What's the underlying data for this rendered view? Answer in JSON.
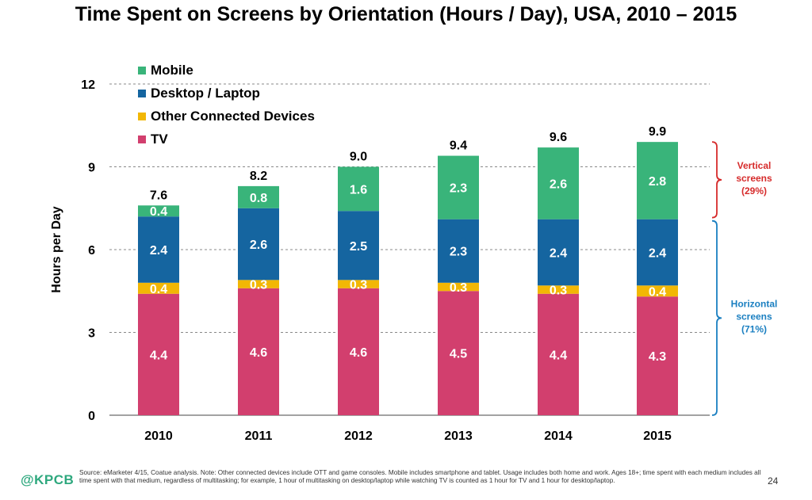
{
  "chart_data": {
    "type": "bar",
    "stacked": true,
    "title": "Time Spent on Screens by Orientation (Hours / Day), USA, 2010 – 2015",
    "ylabel": "Hours per Day",
    "xlabel": "",
    "ylim": [
      0,
      12
    ],
    "yticks": [
      0,
      3,
      6,
      9,
      12
    ],
    "grid": true,
    "legend_position": "top-left",
    "categories": [
      "2010",
      "2011",
      "2012",
      "2013",
      "2014",
      "2015"
    ],
    "series": [
      {
        "name": "TV",
        "color": "#d23f6e",
        "values": [
          4.4,
          4.6,
          4.6,
          4.5,
          4.4,
          4.3
        ]
      },
      {
        "name": "Other Connected Devices",
        "color": "#f2b705",
        "values": [
          0.4,
          0.3,
          0.3,
          0.3,
          0.3,
          0.4
        ]
      },
      {
        "name": "Desktop / Laptop",
        "color": "#1565a0",
        "values": [
          2.4,
          2.6,
          2.5,
          2.3,
          2.4,
          2.4
        ]
      },
      {
        "name": "Mobile",
        "color": "#39b47a",
        "values": [
          0.4,
          0.8,
          1.6,
          2.3,
          2.6,
          2.8
        ]
      }
    ],
    "legend_order": [
      "Mobile",
      "Desktop / Laptop",
      "Other Connected Devices",
      "TV"
    ],
    "totals": [
      "7.6",
      "8.2",
      "9.0",
      "9.4",
      "9.6",
      "9.9"
    ],
    "annotations": [
      {
        "text": [
          "Vertical",
          "screens",
          "(29%)"
        ],
        "color": "#d62b2b"
      },
      {
        "text": [
          "Horizontal",
          "screens",
          "(71%)"
        ],
        "color": "#1a7fc1"
      }
    ]
  },
  "footer": {
    "logo": "@KPCB",
    "note": "Source: eMarketer 4/15, Coatue analysis. Note: Other connected devices include OTT and game consoles. Mobile includes smartphone and tablet. Usage includes both home and work. Ages 18+; time spent with each medium includes all time spent with that medium, regardless of multitasking; for example, 1 hour of multitasking on desktop/laptop while watching TV is counted as 1 hour for TV and 1 hour for desktop/laptop.",
    "page": "24"
  }
}
